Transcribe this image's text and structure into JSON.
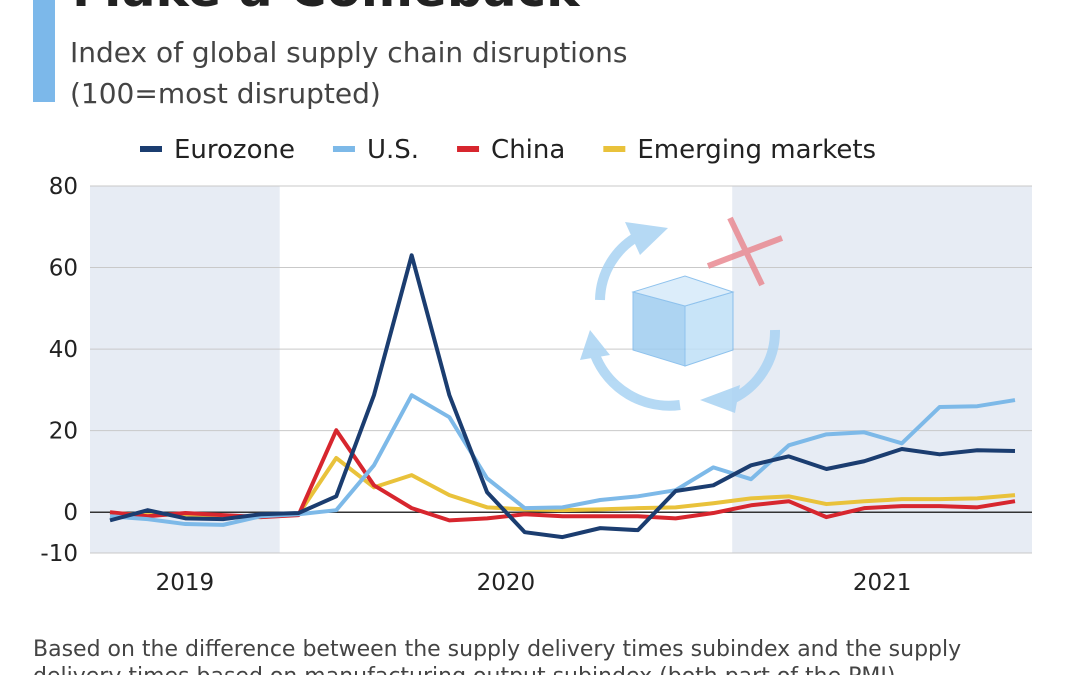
{
  "chart_data": {
    "type": "line",
    "title": "Make a Comeback",
    "subtitle": [
      "Index of global supply chain disruptions",
      "(100=most disrupted)"
    ],
    "footnote": [
      "Based on the difference between the supply delivery times subindex and the supply",
      "delivery times based on manufacturing output subindex (both part of the PMI)"
    ],
    "categories": [
      null,
      null,
      null,
      null,
      null,
      null,
      null,
      null,
      null,
      null,
      null,
      null,
      null,
      null,
      null,
      null,
      null,
      null,
      null,
      null,
      null,
      null,
      null,
      null,
      null
    ],
    "periods": [
      {
        "label": "2019",
        "from": 0,
        "to": 4,
        "shaded": true
      },
      {
        "label": "2020",
        "from": 5,
        "to": 16,
        "shaded": false
      },
      {
        "label": "2021",
        "from": 17,
        "to": 24,
        "shaded": true
      }
    ],
    "series": [
      {
        "name": "Eurozone",
        "color": "#1b3d70",
        "values": [
          -2,
          0.5,
          -1.5,
          -1.7,
          -0.5,
          -0.2,
          3.9,
          28.7,
          63,
          28.7,
          4.9,
          -4.9,
          -6.1,
          -3.9,
          -4.4,
          5.2,
          6.6,
          11.5,
          13.7,
          10.6,
          12.5,
          15.5,
          14.2,
          15.2,
          15
        ]
      },
      {
        "name": "U.S.",
        "color": "#7db9e8",
        "values": [
          -1,
          -1.7,
          -2.9,
          -3.1,
          -1,
          -0.5,
          0.5,
          11.5,
          28.7,
          23.3,
          8.3,
          1,
          1.2,
          3,
          3.9,
          5.4,
          11,
          8.1,
          16.4,
          19.1,
          19.6,
          16.9,
          25.8,
          26,
          27.5
        ]
      },
      {
        "name": "China",
        "color": "#d7262e",
        "values": [
          0,
          -1,
          -0.2,
          -0.7,
          -1.2,
          -0.7,
          20.1,
          6.6,
          1,
          -2,
          -1.5,
          -0.5,
          -1,
          -1,
          -1,
          -1.5,
          -0.2,
          1.7,
          2.7,
          -1.2,
          1,
          1.5,
          1.5,
          1.2,
          2.7
        ]
      },
      {
        "name": "Emerging markets",
        "color": "#e9c23b",
        "values": [
          -0.2,
          -0.7,
          -0.5,
          -1.2,
          -1.2,
          -0.5,
          13.3,
          6.1,
          9.1,
          4.2,
          1.2,
          0.7,
          0.5,
          0.7,
          1,
          1.2,
          2.2,
          3.4,
          3.9,
          2,
          2.7,
          3.2,
          3.2,
          3.4,
          4.2
        ]
      }
    ],
    "ylim": [
      -10,
      80
    ],
    "yticks": [
      -10,
      0,
      20,
      40,
      60,
      80
    ],
    "grid": true,
    "shade_color": "#e7ecf4"
  }
}
